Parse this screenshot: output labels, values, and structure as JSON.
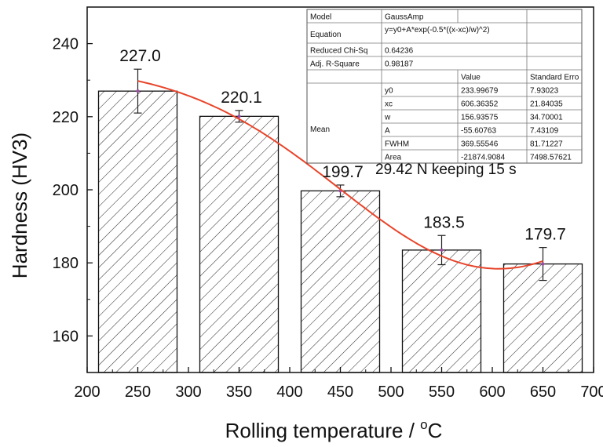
{
  "chart_data": {
    "type": "bar",
    "x": [
      250,
      350,
      450,
      550,
      650
    ],
    "values": [
      227.0,
      220.1,
      199.7,
      183.5,
      179.7
    ],
    "value_labels": [
      "227.0",
      "220.1",
      "199.7",
      "183.5",
      "179.7"
    ],
    "errors": [
      6,
      1.6,
      1.6,
      4,
      4.5
    ],
    "xlabel_main": "Rolling temperature / ",
    "xlabel_sup": "o",
    "xlabel_unit": "C",
    "ylabel": "Hardness (HV3)",
    "xlim": [
      200,
      700
    ],
    "ylim": [
      150,
      250
    ],
    "xticks": [
      200,
      250,
      300,
      350,
      400,
      450,
      500,
      550,
      600,
      650,
      700
    ],
    "yticks": [
      160,
      180,
      200,
      220,
      240
    ],
    "annotation": "29.42 N  keeping 15 s",
    "fit": {
      "model": "GaussAmp",
      "y0": 233.99679,
      "xc": 606.36352,
      "w": 156.93575,
      "A": -55.60763,
      "color": "#e8442a"
    },
    "hatch": "diagonal",
    "fit_table": {
      "rows": [
        [
          "Model",
          "GaussAmp",
          "",
          ""
        ],
        [
          "Equation",
          "y=y0+A*exp(-0.5*((x-xc)/w)^2)",
          "",
          ""
        ],
        [
          "Reduced Chi-Sq",
          "0.64236",
          "",
          ""
        ],
        [
          "Adj. R-Square",
          "0.98187",
          "",
          ""
        ],
        [
          "",
          "",
          "Value",
          "Standard Erro"
        ],
        [
          "Mean",
          "y0",
          "233.99679",
          "7.93023"
        ],
        [
          "",
          "xc",
          "606.36352",
          "21.84035"
        ],
        [
          "",
          "w",
          "156.93575",
          "34.70001"
        ],
        [
          "",
          "A",
          "-55.60763",
          "7.43109"
        ],
        [
          "",
          "FWHM",
          "369.55546",
          "81.71227"
        ],
        [
          "",
          "Area",
          "-21874.9084",
          "7498.57621"
        ]
      ]
    }
  }
}
